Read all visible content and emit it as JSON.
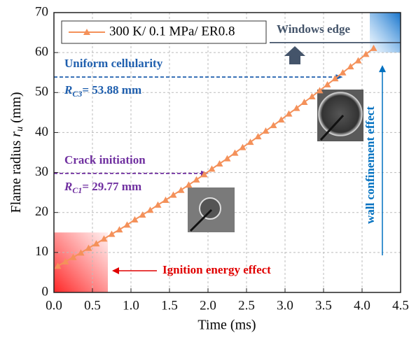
{
  "chart_data": {
    "type": "line",
    "xlabel": "Time (ms)",
    "ylabel": {
      "text": "Flame radius ",
      "var": "r",
      "sub": "u",
      "unit": " (mm)"
    },
    "x": [
      0.05,
      0.15,
      0.25,
      0.35,
      0.45,
      0.55,
      0.65,
      0.75,
      0.85,
      0.95,
      1.05,
      1.15,
      1.25,
      1.35,
      1.45,
      1.55,
      1.65,
      1.75,
      1.85,
      1.95,
      2.05,
      2.15,
      2.25,
      2.35,
      2.45,
      2.55,
      2.65,
      2.75,
      2.85,
      2.95,
      3.05,
      3.15,
      3.25,
      3.35,
      3.45,
      3.55,
      3.65,
      3.75,
      3.85,
      3.95,
      4.05,
      4.15
    ],
    "series": [
      {
        "name": "300 K/ 0.1 MPa/ ER0.8",
        "color": "#f4915a",
        "marker": "triangle",
        "values": [
          6.6,
          7.7,
          8.8,
          9.9,
          11.1,
          12.2,
          13.4,
          14.6,
          15.7,
          16.9,
          18.2,
          19.4,
          20.6,
          21.9,
          23.1,
          24.4,
          25.6,
          26.9,
          28.2,
          29.5,
          30.9,
          32.2,
          33.5,
          34.9,
          36.3,
          37.6,
          39.0,
          40.4,
          41.8,
          43.2,
          44.7,
          46.1,
          47.6,
          49.0,
          50.5,
          52.0,
          53.5,
          55.0,
          56.5,
          58.0,
          59.6,
          61.1
        ]
      }
    ],
    "xlim": [
      0,
      4.5
    ],
    "xticks": [
      {
        "value": 0,
        "label": "0.0"
      },
      0.5,
      {
        "value": 1,
        "label": "1.0"
      },
      1.5,
      {
        "value": 2,
        "label": "2.0"
      },
      2.5,
      {
        "value": 3,
        "label": "3.0"
      },
      3.5,
      {
        "value": 4,
        "label": "4.0"
      },
      4.5
    ],
    "ylim": [
      0,
      70
    ],
    "yticks": [
      0,
      10,
      20,
      30,
      40,
      50,
      60,
      70
    ],
    "grid": true,
    "legend": "upper left",
    "annotations": [
      {
        "text": "Uniform  cellularity",
        "color": "#1f5fae",
        "line": {
          "x": [
            0,
            3.75
          ],
          "y": 53.88
        },
        "label": {
          "var": "R",
          "sub": "C3",
          "rest": "= 53.88 mm"
        }
      },
      {
        "text": "Crack initiation",
        "color": "#7030a0",
        "line": {
          "x": [
            0,
            2.0
          ],
          "y": 29.77
        },
        "label": {
          "var": "R",
          "sub": "C1",
          "rest": "= 29.77 mm"
        }
      },
      {
        "text": "Windows edge",
        "color": "#44546a",
        "line": {
          "x": [
            2.8,
            4.5
          ],
          "y": 62.5
        }
      }
    ],
    "regions": [
      {
        "text": "Ignition energy effect",
        "color": "#e00000",
        "x": [
          0,
          0.7
        ],
        "y": [
          0,
          15
        ]
      },
      {
        "text": "wall confinement effect",
        "color": "#0070c0",
        "x": [
          4.1,
          4.5
        ],
        "y": [
          60,
          70
        ]
      }
    ]
  }
}
